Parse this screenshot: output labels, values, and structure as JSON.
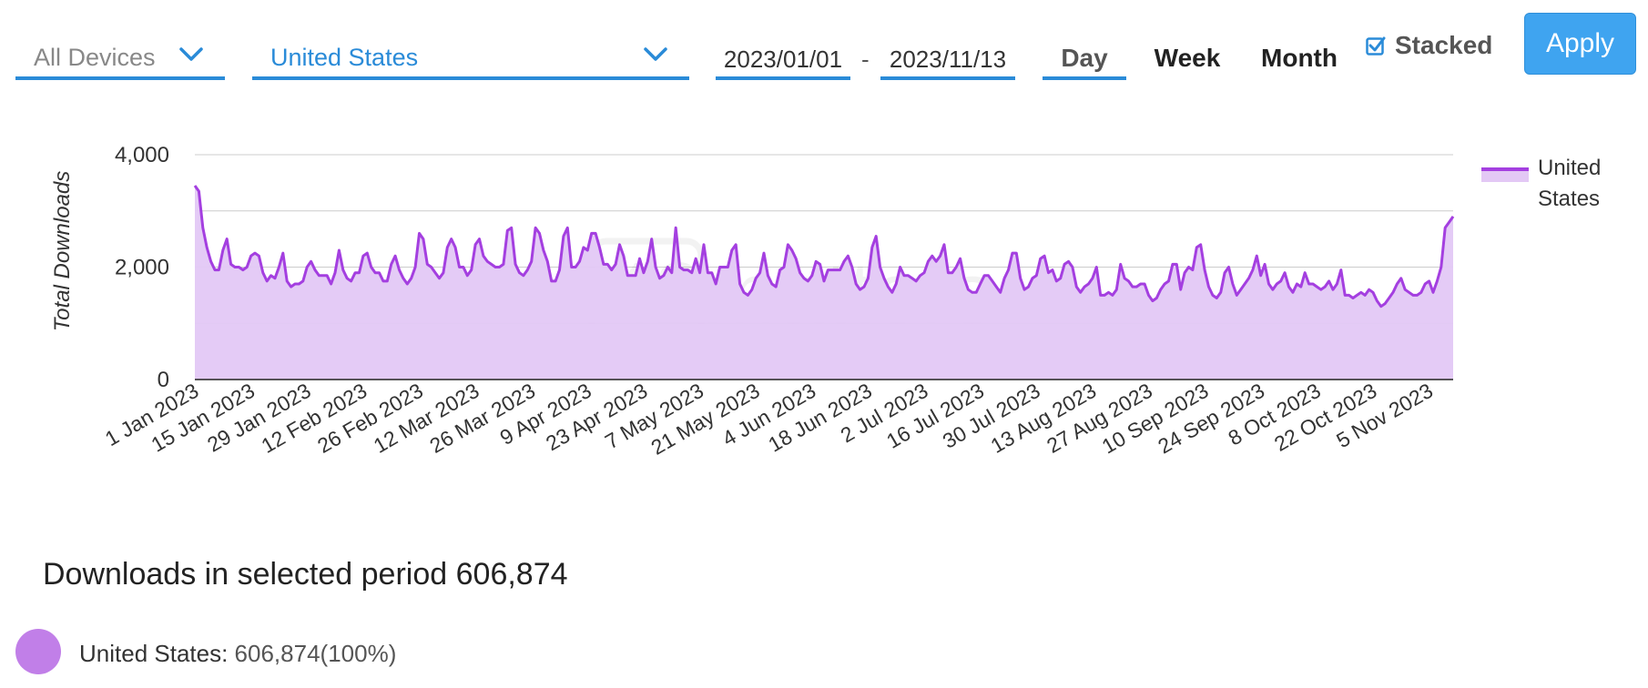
{
  "filters": {
    "device": "All Devices",
    "country": "United States",
    "date_from": "2023/01/01",
    "date_separator": "-",
    "date_to": "2023/11/13",
    "periods": [
      "Day",
      "Week",
      "Month"
    ],
    "active_period": "Day",
    "stacked_label": "Stacked",
    "stacked_checked": true,
    "apply_label": "Apply"
  },
  "colors": {
    "accent": "#2a8bd8",
    "series_line": "#a43fe0",
    "series_fill": "#e3c8f5",
    "legend_dot": "#c17fe8",
    "apply_bg": "#3fa4f0"
  },
  "chart_data": {
    "type": "area",
    "ylabel": "Total Downloads",
    "ylim": [
      0,
      4000
    ],
    "y_ticks": [
      0,
      2000,
      4000
    ],
    "x_start": "2023-01-01",
    "x_end": "2023-11-13",
    "x_tick_labels": [
      "1 Jan 2023",
      "15 Jan 2023",
      "29 Jan 2023",
      "12 Feb 2023",
      "26 Feb 2023",
      "12 Mar 2023",
      "26 Mar 2023",
      "9 Apr 2023",
      "23 Apr 2023",
      "7 May 2023",
      "21 May 2023",
      "4 Jun 2023",
      "18 Jun 2023",
      "2 Jul 2023",
      "16 Jul 2023",
      "30 Jul 2023",
      "13 Aug 2023",
      "27 Aug 2023",
      "10 Sep 2023",
      "24 Sep 2023",
      "8 Oct 2023",
      "22 Oct 2023",
      "5 Nov 2023"
    ],
    "grid": true,
    "legend_position": "right",
    "stacked": true,
    "series": [
      {
        "name": "United States",
        "weekly_values": [
          [
            3450,
            3350,
            2700,
            2350,
            2100,
            1950,
            1950
          ],
          [
            2300,
            2500,
            2050,
            2000,
            2000,
            1950,
            2000
          ],
          [
            2200,
            2250,
            2200,
            1900,
            1750,
            1850,
            1800
          ],
          [
            2000,
            2250,
            1750,
            1650,
            1700,
            1700,
            1750
          ],
          [
            2000,
            2100,
            1950,
            1850,
            1850,
            1850,
            1700
          ],
          [
            1900,
            2300,
            1950,
            1800,
            1750,
            1900,
            1900
          ],
          [
            2200,
            2250,
            2000,
            1900,
            1900,
            1750,
            1750
          ],
          [
            2050,
            2200,
            1950,
            1800,
            1700,
            1800,
            2000
          ],
          [
            2600,
            2500,
            2050,
            2000,
            1900,
            1800,
            1900
          ],
          [
            2350,
            2500,
            2350,
            2000,
            2000,
            1850,
            1950
          ],
          [
            2400,
            2500,
            2200,
            2100,
            2050,
            2000,
            2000
          ],
          [
            2050,
            2650,
            2700,
            2050,
            1900,
            1850,
            1950
          ],
          [
            2100,
            2700,
            2600,
            2300,
            2100,
            1750,
            1750
          ],
          [
            1950,
            2550,
            2700,
            2000,
            2000,
            2100,
            2350
          ],
          [
            2300,
            2600,
            2600,
            2350,
            2050,
            2050,
            1950
          ],
          [
            2050,
            2400,
            2200,
            1850,
            1850,
            1850,
            2150
          ],
          [
            1900,
            2100,
            2500,
            2000,
            1800,
            1850,
            2000
          ],
          [
            1900,
            2700,
            2000,
            1950,
            1950,
            1900,
            2150
          ],
          [
            1900,
            2400,
            1900,
            1900,
            1700,
            2000,
            2000
          ],
          [
            2000,
            2300,
            2400,
            1700,
            1550,
            1500,
            1600
          ],
          [
            1800,
            1900,
            2250,
            1850,
            1700,
            1650,
            1950
          ],
          [
            2000,
            2400,
            2300,
            2150,
            1900,
            1800,
            1750
          ],
          [
            1850,
            2100,
            2050,
            1750,
            1950,
            1950,
            1950
          ],
          [
            1950,
            2100,
            2200,
            2000,
            1700,
            1600,
            1650
          ],
          [
            1800,
            2350,
            2550,
            2000,
            1800,
            1650,
            1550
          ],
          [
            1700,
            2000,
            1850,
            1850,
            1800,
            1750,
            1850
          ],
          [
            1900,
            2100,
            2200,
            2100,
            2200,
            2400,
            1900
          ],
          [
            1900,
            2000,
            2150,
            1800,
            1600,
            1550,
            1550
          ],
          [
            1700,
            1850,
            1850,
            1750,
            1650,
            1550,
            1800
          ],
          [
            1950,
            2250,
            2250,
            1800,
            1600,
            1650,
            1800
          ],
          [
            1850,
            2150,
            2200,
            1900,
            1950,
            1750,
            1800
          ],
          [
            2050,
            2100,
            2000,
            1650,
            1550,
            1650,
            1700
          ],
          [
            1800,
            2000,
            1500,
            1500,
            1550,
            1500,
            1600
          ],
          [
            2050,
            1800,
            1750,
            1650,
            1650,
            1700,
            1700
          ],
          [
            1500,
            1400,
            1450,
            1600,
            1700,
            1750,
            2050
          ],
          [
            2050,
            1600,
            1900,
            2000,
            1950,
            2350,
            2400
          ],
          [
            1950,
            1650,
            1500,
            1450,
            1550,
            1900,
            2000
          ],
          [
            1700,
            1500,
            1600,
            1700,
            1800,
            1950,
            2200
          ],
          [
            1850,
            2050,
            1700,
            1600,
            1700,
            1750,
            1900
          ],
          [
            1650,
            1550,
            1700,
            1650,
            1900,
            1700,
            1700
          ],
          [
            1650,
            1600,
            1650,
            1750,
            1600,
            1700,
            1950
          ],
          [
            1500,
            1500,
            1450,
            1500,
            1550,
            1500,
            1600
          ],
          [
            1550,
            1400,
            1300,
            1350,
            1450,
            1550,
            1700
          ],
          [
            1800,
            1600,
            1550,
            1500,
            1500,
            1550,
            1700
          ],
          [
            1750,
            1550,
            1750,
            2000,
            2700,
            2800,
            2900
          ]
        ]
      }
    ]
  },
  "summary": {
    "total_label": "Downloads in selected period",
    "total_value": "606,874",
    "breakdown": [
      {
        "name": "United States:",
        "value": "606,874",
        "percent": "(100%)"
      }
    ]
  },
  "watermark_text": "42matters"
}
